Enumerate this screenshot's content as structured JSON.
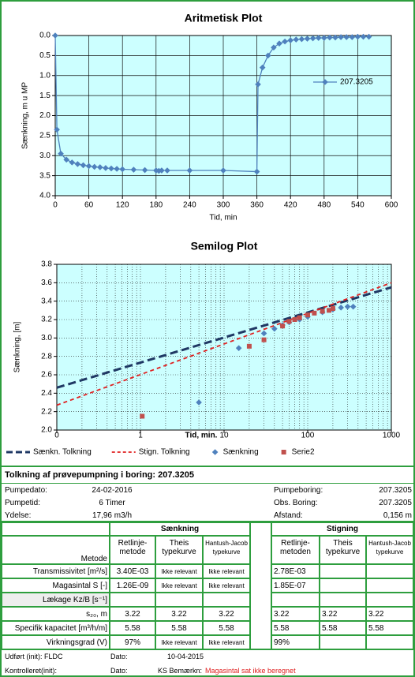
{
  "chart_data": [
    {
      "type": "line",
      "title": "Aritmetisk Plot",
      "x_label": "Tid, min",
      "y_label": "Sænkning, m u MP",
      "xlim": [
        0,
        600
      ],
      "xticks": [
        0,
        60,
        120,
        180,
        240,
        300,
        360,
        420,
        480,
        540,
        600
      ],
      "ylim": [
        0,
        4
      ],
      "y_reversed": true,
      "yticks": [
        {
          "value": 0,
          "label": "0.0"
        },
        0.5,
        {
          "value": 1,
          "label": "1.0"
        },
        1.5,
        {
          "value": 2,
          "label": "2.0"
        },
        2.5,
        {
          "value": 3,
          "label": "3.0"
        },
        3.5,
        {
          "value": 4,
          "label": "4.0"
        }
      ],
      "grid": true,
      "legend": "right",
      "plot_color": "#ccffff",
      "series": [
        {
          "name": "207.3205",
          "color": "#4f81bd",
          "line": true,
          "marker": "diamond",
          "x": [
            0,
            3,
            10,
            20,
            30,
            40,
            50,
            60,
            70,
            80,
            90,
            100,
            110,
            120,
            140,
            160,
            180,
            185,
            190,
            200,
            240,
            300,
            360,
            362,
            370,
            380,
            390,
            400,
            410,
            420,
            430,
            440,
            450,
            460,
            470,
            480,
            490,
            500,
            510,
            520,
            530,
            540,
            550,
            560
          ],
          "values": [
            0,
            2.35,
            2.95,
            3.1,
            3.17,
            3.21,
            3.24,
            3.26,
            3.28,
            3.29,
            3.31,
            3.32,
            3.33,
            3.34,
            3.35,
            3.36,
            3.37,
            3.38,
            3.37,
            3.37,
            3.37,
            3.37,
            3.4,
            1.22,
            0.8,
            0.5,
            0.3,
            0.2,
            0.15,
            0.12,
            0.1,
            0.09,
            0.08,
            0.07,
            0.06,
            0.06,
            0.05,
            0.05,
            0.04,
            0.04,
            0.04,
            0.03,
            0.03,
            0.03
          ]
        }
      ]
    },
    {
      "type": "line",
      "title": "Semilog Plot",
      "x_label": "Tid, min.",
      "y_label": "Sænkning, [m]",
      "x_log": true,
      "xlim": [
        0.1,
        1000
      ],
      "xticks": [
        {
          "value": 0.1,
          "label": "0"
        },
        1,
        10,
        100,
        1000
      ],
      "ylim": [
        2,
        3.8
      ],
      "yticks": [
        {
          "value": 2,
          "label": "2.0"
        },
        2.2,
        2.4,
        2.6,
        2.8,
        {
          "value": 3,
          "label": "3.0"
        },
        3.2,
        3.4,
        3.6,
        3.8
      ],
      "grid": true,
      "minor_grid": true,
      "legend": "bottom",
      "plot_color": "#ccffff",
      "series": [
        {
          "name": "Sænkn. Tolkning",
          "color": "#1f3864",
          "line": true,
          "dashed": true,
          "x": [
            0.1,
            1000
          ],
          "values": [
            2.46,
            3.55
          ]
        },
        {
          "name": "Stign. Tolkning",
          "color": "#e02020",
          "line": true,
          "dashed": true,
          "x": [
            0.1,
            1000
          ],
          "values": [
            2.27,
            3.6
          ]
        },
        {
          "name": "Sænkning",
          "color": "#4f81bd",
          "line": false,
          "marker": "diamond",
          "x": [
            5,
            15,
            30,
            40,
            50,
            60,
            80,
            100,
            150,
            200,
            250,
            300,
            350
          ],
          "values": [
            2.3,
            2.89,
            3.05,
            3.1,
            3.14,
            3.17,
            3.2,
            3.23,
            3.28,
            3.31,
            3.33,
            3.34,
            3.34
          ]
        },
        {
          "name": "Serie2",
          "color": "#c0504d",
          "line": false,
          "marker": "square",
          "x": [
            1.05,
            20,
            30,
            50,
            60,
            70,
            80,
            100,
            120,
            150,
            180,
            200
          ],
          "values": [
            2.15,
            2.91,
            2.98,
            3.13,
            3.18,
            3.2,
            3.22,
            3.25,
            3.27,
            3.29,
            3.3,
            3.32
          ]
        }
      ]
    }
  ],
  "report": {
    "title": "Tolkning af prøvepumpning i boring: 207.3205",
    "info_left": [
      [
        "Pumpedato:",
        "24-02-2016"
      ],
      [
        "Pumpetid:",
        "6 Timer"
      ],
      [
        "Ydelse:",
        "17,96 m3/h"
      ]
    ],
    "info_right": [
      [
        "Pumpeboring:",
        "207.3205"
      ],
      [
        "Obs. Boring:",
        "207.3205"
      ],
      [
        "Afstand:",
        "0,156 m"
      ]
    ],
    "table": {
      "groups": [
        "Sænkning",
        "Stigning"
      ],
      "method_label": "Metode",
      "methods": [
        "Retlinje-metode",
        "Theis typekurve",
        "Hantush-Jacob typekurve",
        "Retlinje-metoden",
        "Theis typekurve",
        "Hantush-Jacob typekurve"
      ],
      "rows": [
        {
          "label": "Transmissivitet [m²/s]",
          "cells": [
            "3.40E-03",
            "Ikke relevant",
            "Ikke relevant",
            "2.78E-03",
            null,
            null
          ]
        },
        {
          "label": "Magasintal S [-]",
          "cells": [
            "1.26E-09",
            "Ikke relevant",
            "Ikke relevant",
            "1.85E-07",
            null,
            null
          ]
        },
        {
          "label": "Lækage Kz/B [s⁻¹]",
          "cells": [
            null,
            null,
            null,
            null,
            null,
            null
          ]
        },
        {
          "label": "s₂₀, m",
          "cells": [
            "3.22",
            "3.22",
            "3.22",
            "3.22",
            "3.22",
            "3.22"
          ]
        },
        {
          "label": "Specifik kapacitet [m³/h/m]",
          "cells": [
            "5.58",
            "5.58",
            "5.58",
            "5.58",
            "5.58",
            "5.58"
          ]
        },
        {
          "label": "Virkningsgrad (V)",
          "cells": [
            "97%",
            "Ikke relevant",
            "Ikke relevant",
            "99%",
            null,
            null
          ]
        }
      ]
    },
    "footer": [
      [
        "Udført (init): FLDC",
        "Dato:",
        "10-04-2015"
      ],
      [
        "Kontrolleret(init):",
        "Dato:",
        "KS Bemærkn:",
        "Magasintal sat ikke beregnet"
      ]
    ]
  }
}
